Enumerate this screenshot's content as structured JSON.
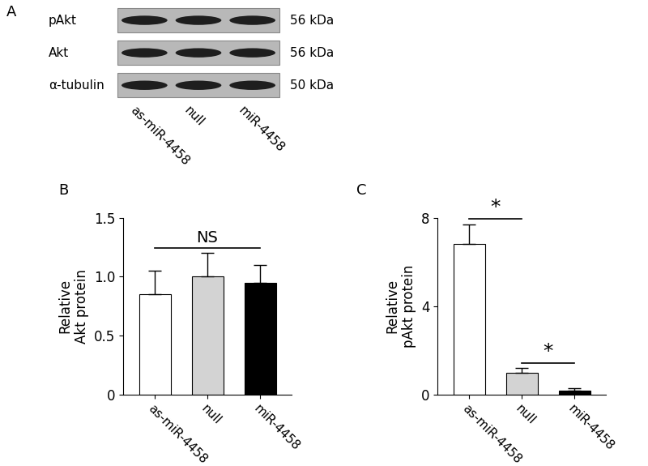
{
  "blot": {
    "panel": "A",
    "rows": [
      {
        "label": "pAkt",
        "size": "56 kDa"
      },
      {
        "label": "Akt",
        "size": "56 kDa"
      },
      {
        "label": "α-tubulin",
        "size": "50 kDa"
      }
    ],
    "lanes": [
      "as-miR-4458",
      "null",
      "miR-4458"
    ]
  },
  "chart_data": [
    {
      "panel": "B",
      "type": "bar",
      "categories": [
        "as-miR-4458",
        "null",
        "miR-4458"
      ],
      "values": [
        0.85,
        1.0,
        0.95
      ],
      "errors": [
        0.2,
        0.2,
        0.15
      ],
      "colors": [
        "#ffffff",
        "#d3d3d3",
        "#000000"
      ],
      "y_label": "Relative\nAkt protein",
      "ylim": [
        0,
        1.5
      ],
      "yticks": [
        0,
        0.5,
        {
          "value": 1,
          "label": "1.0"
        },
        1.5
      ],
      "annotations": [
        {
          "text": "NS",
          "between": [
            "as-miR-4458",
            "miR-4458"
          ]
        }
      ]
    },
    {
      "panel": "C",
      "type": "bar",
      "categories": [
        "as-miR-4458",
        "null",
        "miR-4458"
      ],
      "values": [
        6.8,
        1.0,
        0.2
      ],
      "errors": [
        0.9,
        0.2,
        0.1
      ],
      "colors": [
        "#ffffff",
        "#d3d3d3",
        "#000000"
      ],
      "y_label": "Relative\npAkt protein",
      "ylim": [
        0,
        8
      ],
      "yticks": [
        0,
        4,
        8
      ],
      "annotations": [
        {
          "text": "*",
          "between": [
            "as-miR-4458",
            "null"
          ]
        },
        {
          "text": "*",
          "between": [
            "null",
            "miR-4458"
          ]
        }
      ]
    }
  ]
}
